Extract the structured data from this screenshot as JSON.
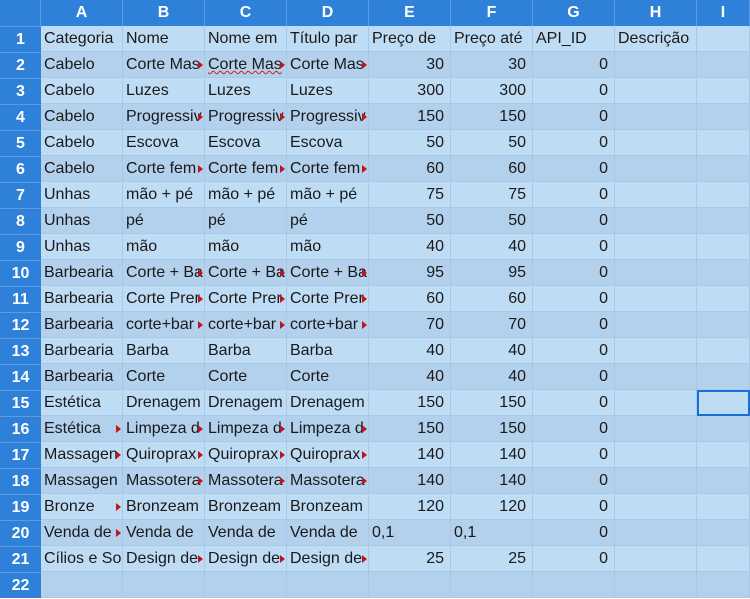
{
  "columns": [
    "A",
    "B",
    "C",
    "D",
    "E",
    "F",
    "G",
    "H",
    "I"
  ],
  "row_numbers": [
    "1",
    "2",
    "3",
    "4",
    "5",
    "6",
    "7",
    "8",
    "9",
    "10",
    "11",
    "12",
    "13",
    "14",
    "15",
    "16",
    "17",
    "18",
    "19",
    "20",
    "21",
    "22"
  ],
  "header_row": [
    "Categoria",
    "Nome",
    "Nome em",
    "Título par",
    "Preço de",
    "Preço até",
    "API_ID",
    "Descrição",
    ""
  ],
  "rows": [
    [
      "Cabelo",
      "Corte Mas",
      "Corte Mas",
      "Corte Mas",
      "30",
      "30",
      "0",
      "",
      ""
    ],
    [
      "Cabelo",
      "Luzes",
      "Luzes",
      "Luzes",
      "300",
      "300",
      "0",
      "",
      ""
    ],
    [
      "Cabelo",
      "Progressiv",
      "Progressiv",
      "Progressiv",
      "150",
      "150",
      "0",
      "",
      ""
    ],
    [
      "Cabelo",
      "Escova",
      "Escova",
      "Escova",
      "50",
      "50",
      "0",
      "",
      ""
    ],
    [
      "Cabelo",
      "Corte fem",
      "Corte fem",
      "Corte fem",
      "60",
      "60",
      "0",
      "",
      ""
    ],
    [
      "Unhas",
      "mão + pé",
      "mão + pé",
      "mão + pé",
      "75",
      "75",
      "0",
      "",
      ""
    ],
    [
      "Unhas",
      "pé",
      "pé",
      "pé",
      "50",
      "50",
      "0",
      "",
      ""
    ],
    [
      "Unhas",
      "mão",
      "mão",
      "mão",
      "40",
      "40",
      "0",
      "",
      ""
    ],
    [
      "Barbearia",
      "Corte + Ba",
      "Corte + Ba",
      "Corte + Ba",
      "95",
      "95",
      "0",
      "",
      ""
    ],
    [
      "Barbearia",
      "Corte Prer",
      "Corte Prer",
      "Corte Prer",
      "60",
      "60",
      "0",
      "",
      ""
    ],
    [
      "Barbearia",
      "corte+bar",
      "corte+bar",
      "corte+bar",
      "70",
      "70",
      "0",
      "",
      ""
    ],
    [
      "Barbearia",
      "Barba",
      "Barba",
      "Barba",
      "40",
      "40",
      "0",
      "",
      ""
    ],
    [
      "Barbearia",
      "Corte",
      "Corte",
      "Corte",
      "40",
      "40",
      "0",
      "",
      ""
    ],
    [
      "Estética",
      "Drenagem",
      "Drenagem",
      "Drenagem",
      "150",
      "150",
      "0",
      "",
      ""
    ],
    [
      "Estética",
      "Limpeza d",
      "Limpeza d",
      "Limpeza d",
      "150",
      "150",
      "0",
      "",
      ""
    ],
    [
      "Massagen",
      "Quiroprax",
      "Quiroprax",
      "Quiroprax",
      "140",
      "140",
      "0",
      "",
      ""
    ],
    [
      "Massagen",
      "Massotera",
      "Massotera",
      "Massotera",
      "140",
      "140",
      "0",
      "",
      ""
    ],
    [
      "Bronze",
      "Bronzeam",
      "Bronzeam",
      "Bronzeam",
      "120",
      "120",
      "0",
      "",
      ""
    ],
    [
      "Venda de",
      "Venda de",
      "Venda de",
      "Venda de",
      "0,1",
      "0,1",
      "0",
      "",
      ""
    ],
    [
      "Cílios e So",
      "Design de",
      "Design de",
      "Design de",
      "25",
      "25",
      "0",
      "",
      ""
    ],
    [
      "",
      "",
      "",
      "",
      "",
      "",
      "",
      "",
      ""
    ]
  ],
  "colors": {
    "header_bg": "#2e80d9",
    "row_band_1": "#bfdcf5",
    "row_band_2": "#b3d0ec",
    "selection": "#1a6fd4",
    "overflow_marker": "#c0141c"
  }
}
